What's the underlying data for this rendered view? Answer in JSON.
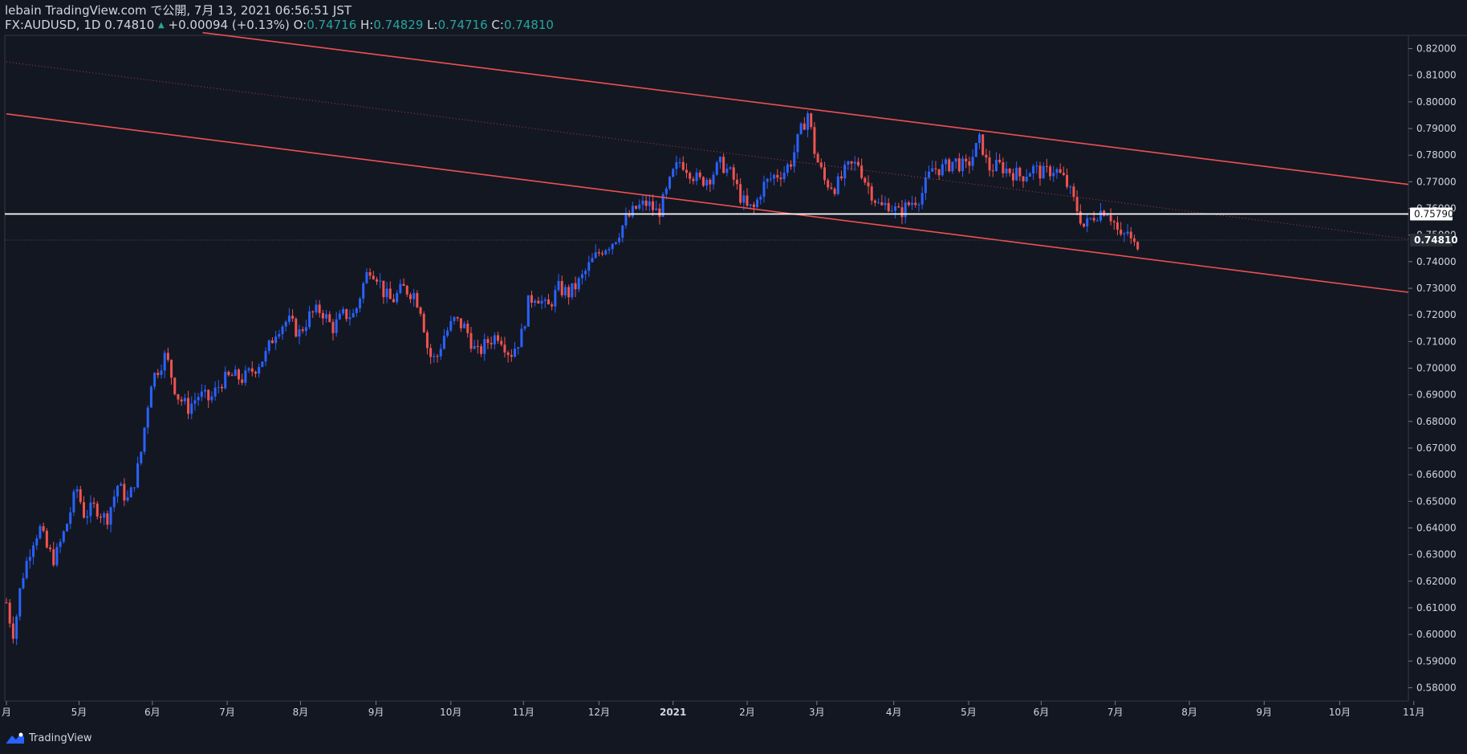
{
  "header": {
    "published": "lebain TradingView.com で公開, 7月 13, 2021 06:56:51 JST",
    "symbol": "FX:AUDUSD, 1D",
    "last": "0.74810",
    "change": "+0.00094 (+0.13%)",
    "o_label": "O:",
    "o_value": "0.74716",
    "h_label": "H:",
    "h_value": "0.74829",
    "l_label": "L:",
    "l_value": "0.74716",
    "c_label": "C:",
    "c_value": "0.74810"
  },
  "footer": {
    "brand": "TradingView"
  },
  "colors": {
    "background": "#131722",
    "up": "#2962ff",
    "down": "#ef5350",
    "channel": "#f0504f",
    "hline": "#ffffff",
    "grid": "#363a45",
    "accent": "#26a69a"
  },
  "chart_data": {
    "type": "candlestick",
    "symbol": "FX:AUDUSD",
    "interval": "1D",
    "ylim": [
      0.575,
      0.825
    ],
    "y_ticks": [
      "0.82000",
      "0.81000",
      "0.80000",
      "0.79000",
      "0.78000",
      "0.77000",
      "0.76000",
      "0.75000",
      "0.74000",
      "0.73000",
      "0.72000",
      "0.71000",
      "0.70000",
      "0.69000",
      "0.68000",
      "0.67000",
      "0.66000",
      "0.65000",
      "0.64000",
      "0.63000",
      "0.62000",
      "0.61000",
      "0.60000",
      "0.59000",
      "0.58000"
    ],
    "y_tick_values": [
      0.82,
      0.81,
      0.8,
      0.79,
      0.78,
      0.77,
      0.76,
      0.75,
      0.74,
      0.73,
      0.72,
      0.71,
      0.7,
      0.69,
      0.68,
      0.67,
      0.66,
      0.65,
      0.64,
      0.63,
      0.62,
      0.61,
      0.6,
      0.59,
      0.58
    ],
    "x_ticks": [
      {
        "label": "月",
        "t": 0.0
      },
      {
        "label": "5月",
        "t": 0.98
      },
      {
        "label": "6月",
        "t": 1.97
      },
      {
        "label": "7月",
        "t": 2.98
      },
      {
        "label": "8月",
        "t": 3.97
      },
      {
        "label": "9月",
        "t": 4.99
      },
      {
        "label": "10月",
        "t": 6.0
      },
      {
        "label": "11月",
        "t": 6.98
      },
      {
        "label": "12月",
        "t": 8.0
      },
      {
        "label": "2021",
        "t": 9.0
      },
      {
        "label": "2月",
        "t": 10.0
      },
      {
        "label": "3月",
        "t": 10.94
      },
      {
        "label": "4月",
        "t": 11.98
      },
      {
        "label": "5月",
        "t": 12.99
      },
      {
        "label": "6月",
        "t": 13.97
      },
      {
        "label": "7月",
        "t": 14.97
      },
      {
        "label": "8月",
        "t": 15.97
      },
      {
        "label": "9月",
        "t": 16.98
      },
      {
        "label": "10月",
        "t": 18.0
      },
      {
        "label": "11月",
        "t": 19.0
      }
    ],
    "x_tick_bold": "2021",
    "close_path": [
      [
        0.0,
        0.612
      ],
      [
        0.05,
        0.605
      ],
      [
        0.1,
        0.6
      ],
      [
        0.2,
        0.62
      ],
      [
        0.35,
        0.635
      ],
      [
        0.45,
        0.64
      ],
      [
        0.55,
        0.632
      ],
      [
        0.65,
        0.628
      ],
      [
        0.8,
        0.64
      ],
      [
        0.95,
        0.655
      ],
      [
        1.05,
        0.645
      ],
      [
        1.2,
        0.648
      ],
      [
        1.35,
        0.643
      ],
      [
        1.5,
        0.656
      ],
      [
        1.65,
        0.65
      ],
      [
        1.8,
        0.665
      ],
      [
        1.95,
        0.695
      ],
      [
        2.05,
        0.7
      ],
      [
        2.15,
        0.705
      ],
      [
        2.3,
        0.69
      ],
      [
        2.45,
        0.685
      ],
      [
        2.6,
        0.69
      ],
      [
        2.75,
        0.688
      ],
      [
        2.9,
        0.695
      ],
      [
        3.05,
        0.697
      ],
      [
        3.2,
        0.696
      ],
      [
        3.35,
        0.7
      ],
      [
        3.5,
        0.705
      ],
      [
        3.65,
        0.715
      ],
      [
        3.8,
        0.718
      ],
      [
        3.95,
        0.713
      ],
      [
        4.1,
        0.72
      ],
      [
        4.25,
        0.722
      ],
      [
        4.4,
        0.715
      ],
      [
        4.55,
        0.72
      ],
      [
        4.7,
        0.72
      ],
      [
        4.8,
        0.73
      ],
      [
        4.9,
        0.738
      ],
      [
        5.0,
        0.735
      ],
      [
        5.1,
        0.728
      ],
      [
        5.2,
        0.725
      ],
      [
        5.35,
        0.73
      ],
      [
        5.5,
        0.728
      ],
      [
        5.6,
        0.722
      ],
      [
        5.7,
        0.705
      ],
      [
        5.8,
        0.703
      ],
      [
        5.9,
        0.712
      ],
      [
        6.05,
        0.718
      ],
      [
        6.2,
        0.715
      ],
      [
        6.35,
        0.705
      ],
      [
        6.5,
        0.71
      ],
      [
        6.65,
        0.713
      ],
      [
        6.8,
        0.705
      ],
      [
        6.95,
        0.712
      ],
      [
        7.05,
        0.725
      ],
      [
        7.15,
        0.728
      ],
      [
        7.3,
        0.722
      ],
      [
        7.45,
        0.73
      ],
      [
        7.6,
        0.728
      ],
      [
        7.75,
        0.733
      ],
      [
        7.9,
        0.74
      ],
      [
        8.05,
        0.745
      ],
      [
        8.2,
        0.748
      ],
      [
        8.35,
        0.755
      ],
      [
        8.5,
        0.76
      ],
      [
        8.65,
        0.762
      ],
      [
        8.8,
        0.758
      ],
      [
        8.9,
        0.765
      ],
      [
        9.0,
        0.773
      ],
      [
        9.1,
        0.778
      ],
      [
        9.2,
        0.775
      ],
      [
        9.35,
        0.77
      ],
      [
        9.5,
        0.772
      ],
      [
        9.65,
        0.777
      ],
      [
        9.8,
        0.772
      ],
      [
        9.9,
        0.765
      ],
      [
        10.0,
        0.76
      ],
      [
        10.1,
        0.76
      ],
      [
        10.2,
        0.768
      ],
      [
        10.35,
        0.772
      ],
      [
        10.5,
        0.774
      ],
      [
        10.6,
        0.778
      ],
      [
        10.7,
        0.787
      ],
      [
        10.82,
        0.796
      ],
      [
        10.92,
        0.78
      ],
      [
        11.05,
        0.77
      ],
      [
        11.2,
        0.768
      ],
      [
        11.35,
        0.775
      ],
      [
        11.5,
        0.777
      ],
      [
        11.6,
        0.77
      ],
      [
        11.7,
        0.765
      ],
      [
        11.8,
        0.76
      ],
      [
        11.9,
        0.762
      ],
      [
        12.05,
        0.758
      ],
      [
        12.2,
        0.762
      ],
      [
        12.35,
        0.765
      ],
      [
        12.5,
        0.775
      ],
      [
        12.65,
        0.775
      ],
      [
        12.8,
        0.778
      ],
      [
        12.95,
        0.775
      ],
      [
        13.05,
        0.78
      ],
      [
        13.15,
        0.786
      ],
      [
        13.25,
        0.775
      ],
      [
        13.4,
        0.776
      ],
      [
        13.55,
        0.774
      ],
      [
        13.7,
        0.772
      ],
      [
        13.85,
        0.775
      ],
      [
        14.0,
        0.773
      ],
      [
        14.15,
        0.775
      ],
      [
        14.3,
        0.77
      ],
      [
        14.45,
        0.76
      ],
      [
        14.55,
        0.753
      ],
      [
        14.7,
        0.758
      ],
      [
        14.85,
        0.76
      ],
      [
        14.95,
        0.755
      ],
      [
        15.05,
        0.748
      ],
      [
        15.15,
        0.752
      ],
      [
        15.2,
        0.745
      ],
      [
        15.3,
        0.748
      ]
    ],
    "last_price": 0.7481,
    "last_price_label": "0.74810",
    "hline_price": 0.7579,
    "hline_label": "0.75790",
    "channel_upper": {
      "points": [
        [
          2.65,
          0.826
        ],
        [
          19.0,
          0.769
        ]
      ],
      "style": "solid"
    },
    "channel_lower": {
      "points": [
        [
          0.0,
          0.7955
        ],
        [
          19.0,
          0.7285
        ]
      ],
      "style": "solid"
    },
    "channel_mid": {
      "points": [
        [
          0.0,
          0.815
        ],
        [
          19.0,
          0.7485
        ]
      ],
      "style": "dotted"
    }
  }
}
